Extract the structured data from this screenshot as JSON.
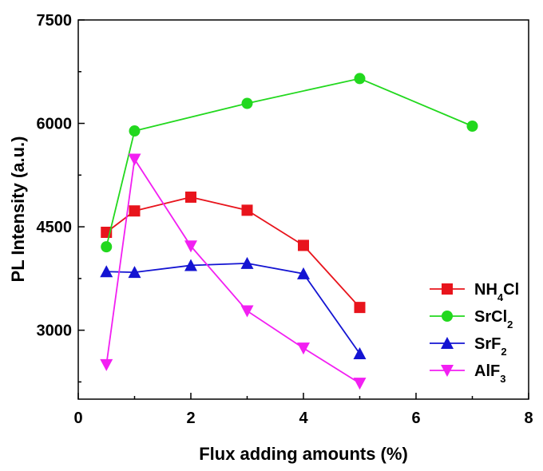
{
  "chart_data": {
    "type": "line",
    "xlabel": "Flux adding amounts (%)",
    "ylabel": "PL Intensity (a.u.)",
    "xlim": [
      0,
      8
    ],
    "ylim": [
      2000,
      7500
    ],
    "xticks": [
      0,
      2,
      4,
      6,
      8
    ],
    "yticks": [
      3000,
      4500,
      6000,
      7500
    ],
    "grid": false,
    "legend_position": "right",
    "series": [
      {
        "name": "NH4Cl",
        "label_main": "NH",
        "label_sub": "4",
        "label_tail": "Cl",
        "color": "#e8141c",
        "marker": "square",
        "points": [
          [
            0.5,
            4420
          ],
          [
            1,
            4730
          ],
          [
            2,
            4930
          ],
          [
            3,
            4740
          ],
          [
            4,
            4230
          ],
          [
            5,
            3330
          ]
        ]
      },
      {
        "name": "SrCl2",
        "label_main": "SrCl",
        "label_sub": "2",
        "label_tail": "",
        "color": "#22d81e",
        "marker": "circle",
        "points": [
          [
            0.5,
            4210
          ],
          [
            1,
            5890
          ],
          [
            3,
            6290
          ],
          [
            5,
            6650
          ],
          [
            7,
            5960
          ]
        ]
      },
      {
        "name": "SrF2",
        "label_main": "SrF",
        "label_sub": "2",
        "label_tail": "",
        "color": "#1414d2",
        "marker": "triangle-up",
        "points": [
          [
            0.5,
            3850
          ],
          [
            1,
            3840
          ],
          [
            2,
            3940
          ],
          [
            3,
            3970
          ],
          [
            4,
            3820
          ],
          [
            5,
            2660
          ]
        ]
      },
      {
        "name": "AlF3",
        "label_main": "AlF",
        "label_sub": "3",
        "label_tail": "",
        "color": "#f21ff2",
        "marker": "triangle-down",
        "points": [
          [
            0.5,
            2500
          ],
          [
            1,
            5480
          ],
          [
            2,
            4220
          ],
          [
            3,
            3280
          ],
          [
            4,
            2740
          ],
          [
            5,
            2230
          ]
        ]
      }
    ]
  }
}
